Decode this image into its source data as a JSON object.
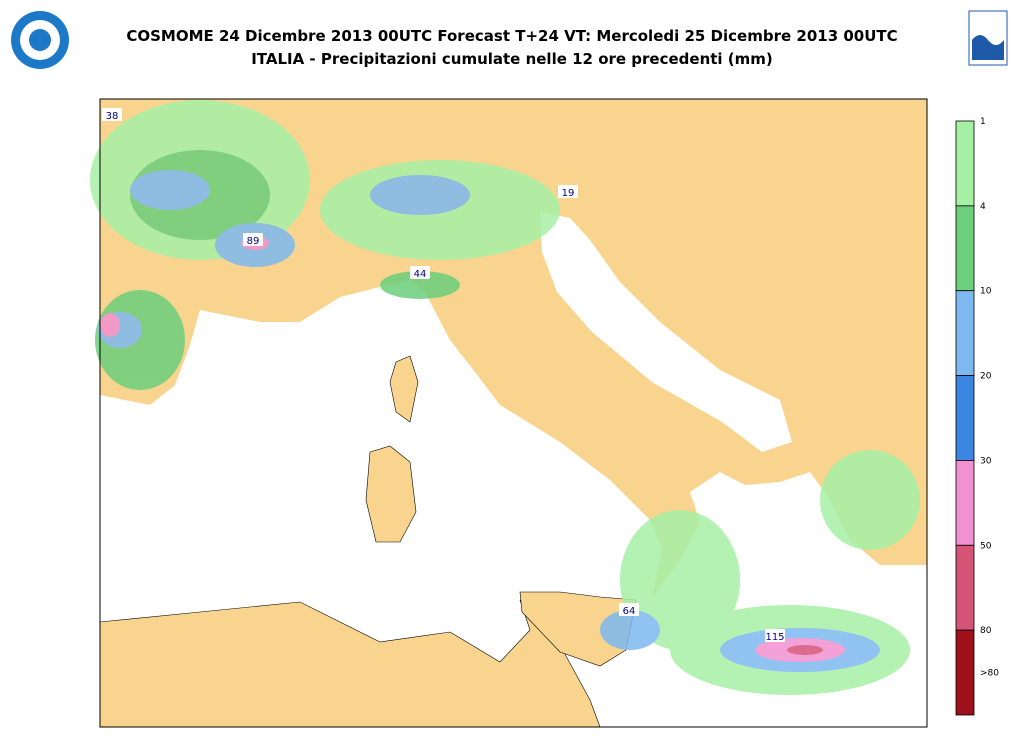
{
  "header": {
    "title_line1": "COSMOME 24 Dicembre 2013 00UTC Forecast T+24 VT: Mercoledi 25 Dicembre 2013 00UTC",
    "title_line2": "ITALIA - Precipitazioni cumulate nelle 12 ore precedenti (mm)"
  },
  "legend": {
    "levels": [
      {
        "label": "1",
        "color": "#a6f0a6"
      },
      {
        "label": "4",
        "color": "#6ccf7c"
      },
      {
        "label": "10",
        "color": "#7db8f0"
      },
      {
        "label": "20",
        "color": "#3a86e0"
      },
      {
        "label": "30",
        "color": "#f291cf"
      },
      {
        "label": "50",
        "color": "#d45478"
      },
      {
        "label": "80",
        "color": "#a0101a"
      }
    ],
    "last_label": ">80"
  },
  "map": {
    "max_labels": [
      "38",
      "89",
      "44",
      "19",
      "64",
      "115"
    ]
  }
}
